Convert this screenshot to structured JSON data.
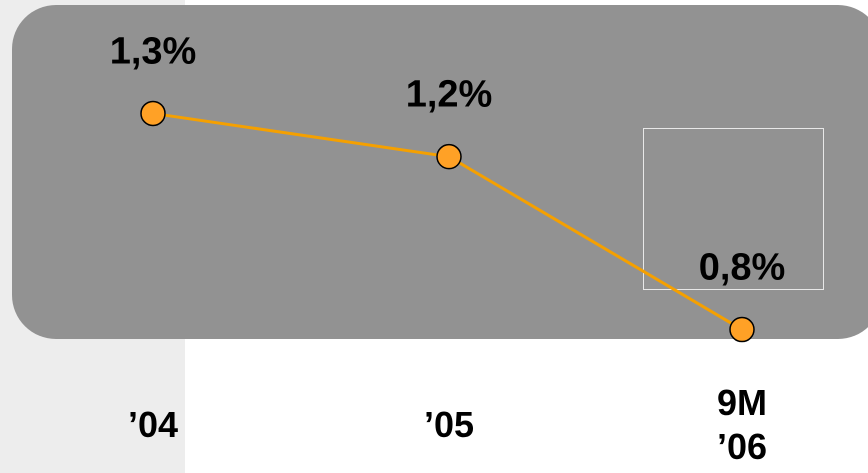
{
  "chart_data": {
    "type": "line",
    "categories": [
      [
        "’04"
      ],
      [
        "’05"
      ],
      [
        "9M",
        "’06"
      ]
    ],
    "series": [
      {
        "values": [
          1.3,
          1.2,
          0.8
        ],
        "labels": [
          "1,3%",
          "1,2%",
          "0,8%"
        ]
      }
    ],
    "ylim": [
      0.6,
      1.5
    ],
    "grid": false,
    "highlight_category_index": 2,
    "colors": {
      "line": "#f5a000",
      "marker_fill": "#ffa126",
      "marker_stroke": "#000000",
      "panel": "#929292",
      "strip": "#ededed"
    }
  }
}
